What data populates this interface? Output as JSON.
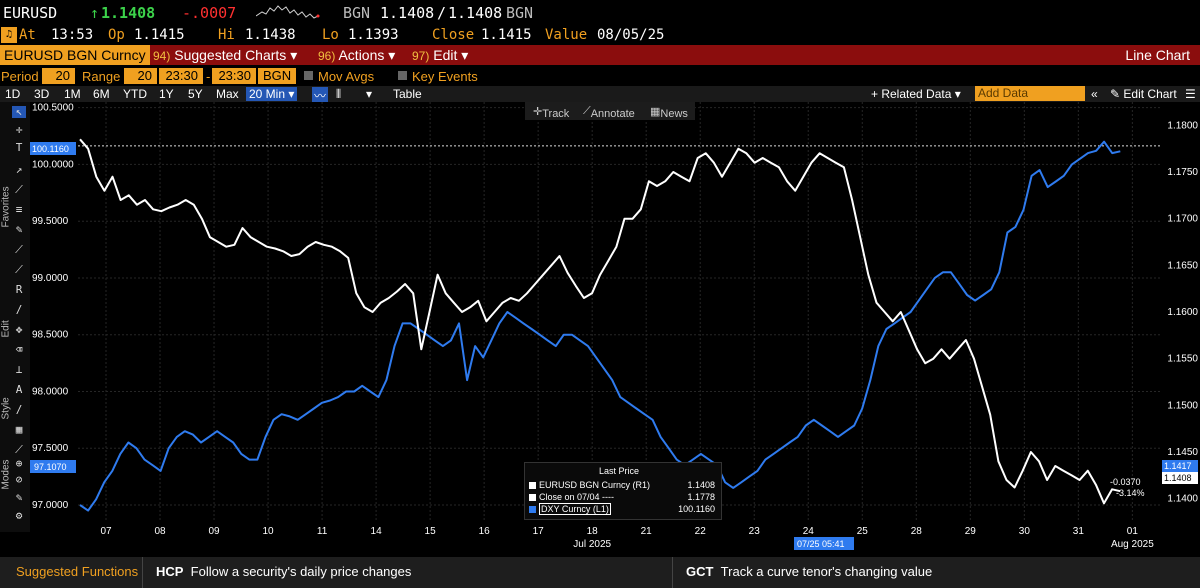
{
  "header": {
    "ticker": "EURUSD",
    "arrow": "↑",
    "last": "1.1408",
    "change": "-.0007",
    "bid_ask_label": "BGN",
    "bid": "1.1408",
    "sep": "/",
    "ask": "1.1408",
    "ask_label": "BGN",
    "at_label": "At",
    "time": "13:53",
    "op_label": "Op",
    "open": "1.1415",
    "hi_label": "Hi",
    "high": "1.1438",
    "lo_label": "Lo",
    "low": "1.1393",
    "close_label": "Close",
    "close": "1.1415",
    "value_label": "Value",
    "value_date": "08/05/25",
    "alert_icon": "bell-icon"
  },
  "menu": {
    "security": "EURUSD BGN Curncy",
    "suggested_num": "94)",
    "suggested": "Suggested Charts",
    "actions_num": "96)",
    "actions": "Actions",
    "edit_num": "97)",
    "edit": "Edit",
    "chart_type": "Line Chart"
  },
  "period": {
    "period_label": "Period",
    "period_value": "20",
    "range_label": "Range",
    "range_value": "20",
    "time_from": "23:30",
    "dash": "-",
    "time_to": "23:30",
    "source": "BGN",
    "mov_avgs": "Mov Avgs",
    "key_events": "Key Events"
  },
  "toolbar": {
    "ranges": [
      "1D",
      "3D",
      "1M",
      "6M",
      "YTD",
      "1Y",
      "5Y",
      "Max"
    ],
    "interval": "20 Min",
    "table": "Table",
    "related": "+ Related Data",
    "add_data_placeholder": "Add Data",
    "edit_chart": "Edit Chart"
  },
  "chart_tools": {
    "track": "Track",
    "annotate": "Annotate",
    "news": "News"
  },
  "sidebar": {
    "favorites": "Favorites",
    "edit": "Edit",
    "style": "Style",
    "modes": "Modes"
  },
  "legend": {
    "title": "Last Price",
    "rows": [
      {
        "label": "EURUSD BGN Curncy  (R1)",
        "value": "1.1408",
        "color": "#ffffff"
      },
      {
        "label": "Close on 07/04 ----",
        "value": "1.1778",
        "color": "#ffffff"
      },
      {
        "label": "DXY Curncy  (L1)",
        "value": "100.1160",
        "color": "#2f7bef"
      }
    ]
  },
  "annotations": {
    "change_abs": "-0.0370",
    "change_pct": "-3.14%",
    "cursor_time": "07/25 05:41",
    "left_tag_top": "100.1160",
    "left_tag_bottom": "97.1070",
    "right_tag_a": "1.1417",
    "right_tag_b": "1.1408"
  },
  "chart_data": {
    "type": "line",
    "x_tick_labels": [
      "07",
      "08",
      "09",
      "10",
      "11",
      "14",
      "15",
      "16",
      "17",
      "18",
      "21",
      "22",
      "23",
      "24",
      "25",
      "28",
      "29",
      "30",
      "31",
      "01"
    ],
    "x_month_labels": [
      {
        "label": "Jul 2025",
        "at": "18"
      },
      {
        "label": "Aug 2025",
        "at": "01"
      }
    ],
    "left_axis": {
      "ticks": [
        "100.5000",
        "100.0000",
        "99.5000",
        "99.0000",
        "98.5000",
        "98.0000",
        "97.5000",
        "97.0000"
      ],
      "ylim": [
        96.85,
        100.55
      ]
    },
    "right_axis": {
      "ticks": [
        "1.1800",
        "1.1750",
        "1.1700",
        "1.1650",
        "1.1600",
        "1.1550",
        "1.1500",
        "1.1450",
        "1.1400"
      ],
      "ylim": [
        1.1375,
        1.1825
      ]
    },
    "reference_line": {
      "label": "Close on 07/04",
      "value": 1.1778
    },
    "series": [
      {
        "name": "EURUSD BGN Curncy (R1)",
        "axis": "right",
        "color": "#ffffff",
        "values": [
          1.1785,
          1.1775,
          1.1745,
          1.173,
          1.1745,
          1.172,
          1.1725,
          1.1715,
          1.172,
          1.171,
          1.1708,
          1.1712,
          1.1715,
          1.172,
          1.1715,
          1.17,
          1.168,
          1.1675,
          1.167,
          1.1672,
          1.169,
          1.168,
          1.1675,
          1.167,
          1.1668,
          1.1665,
          1.166,
          1.1662,
          1.167,
          1.1675,
          1.1672,
          1.167,
          1.1665,
          1.1658,
          1.162,
          1.1605,
          1.16,
          1.161,
          1.1615,
          1.1622,
          1.163,
          1.162,
          1.156,
          1.16,
          1.164,
          1.162,
          1.161,
          1.16,
          1.1605,
          1.1612,
          1.159,
          1.16,
          1.161,
          1.1615,
          1.1612,
          1.162,
          1.163,
          1.164,
          1.165,
          1.166,
          1.1642,
          1.1628,
          1.1615,
          1.162,
          1.164,
          1.1655,
          1.167,
          1.17,
          1.17,
          1.171,
          1.174,
          1.1735,
          1.174,
          1.175,
          1.1745,
          1.174,
          1.1765,
          1.177,
          1.176,
          1.1745,
          1.176,
          1.1775,
          1.177,
          1.176,
          1.1765,
          1.176,
          1.1755,
          1.174,
          1.173,
          1.1745,
          1.176,
          1.177,
          1.1765,
          1.176,
          1.1755,
          1.172,
          1.168,
          1.164,
          1.161,
          1.16,
          1.159,
          1.16,
          1.158,
          1.156,
          1.1545,
          1.155,
          1.156,
          1.155,
          1.156,
          1.157,
          1.155,
          1.152,
          1.149,
          1.144,
          1.142,
          1.1412,
          1.143,
          1.145,
          1.144,
          1.142,
          1.1435,
          1.143,
          1.1425,
          1.142,
          1.143,
          1.1415,
          1.1395,
          1.141,
          1.1408
        ]
      },
      {
        "name": "DXY Curncy (L1)",
        "axis": "left",
        "color": "#2f7bef",
        "values": [
          97.0,
          96.95,
          97.05,
          97.2,
          97.3,
          97.45,
          97.55,
          97.5,
          97.4,
          97.35,
          97.3,
          97.5,
          97.6,
          97.65,
          97.62,
          97.55,
          97.6,
          97.65,
          97.6,
          97.55,
          97.45,
          97.4,
          97.4,
          97.6,
          97.75,
          97.8,
          97.78,
          97.75,
          97.8,
          97.85,
          97.9,
          97.92,
          97.95,
          98.0,
          98.0,
          98.05,
          98.0,
          97.95,
          98.1,
          98.4,
          98.6,
          98.6,
          98.55,
          98.5,
          98.45,
          98.4,
          98.45,
          98.6,
          98.1,
          98.4,
          98.3,
          98.45,
          98.6,
          98.7,
          98.65,
          98.6,
          98.55,
          98.5,
          98.45,
          98.4,
          98.5,
          98.5,
          98.45,
          98.4,
          98.3,
          98.2,
          98.1,
          97.95,
          97.9,
          97.85,
          97.8,
          97.75,
          97.6,
          97.5,
          97.4,
          97.35,
          97.4,
          97.45,
          97.4,
          97.35,
          97.2,
          97.15,
          97.2,
          97.25,
          97.3,
          97.4,
          97.45,
          97.5,
          97.55,
          97.6,
          97.7,
          97.75,
          97.7,
          97.65,
          97.6,
          97.65,
          97.7,
          97.85,
          98.1,
          98.4,
          98.55,
          98.6,
          98.65,
          98.7,
          98.8,
          98.9,
          99.0,
          99.05,
          99.05,
          98.95,
          98.85,
          98.8,
          98.85,
          98.9,
          99.05,
          99.4,
          99.45,
          99.6,
          99.9,
          99.95,
          99.8,
          99.85,
          99.9,
          100.0,
          100.05,
          100.1,
          100.12,
          100.2,
          100.1,
          100.116
        ]
      }
    ]
  }
}
